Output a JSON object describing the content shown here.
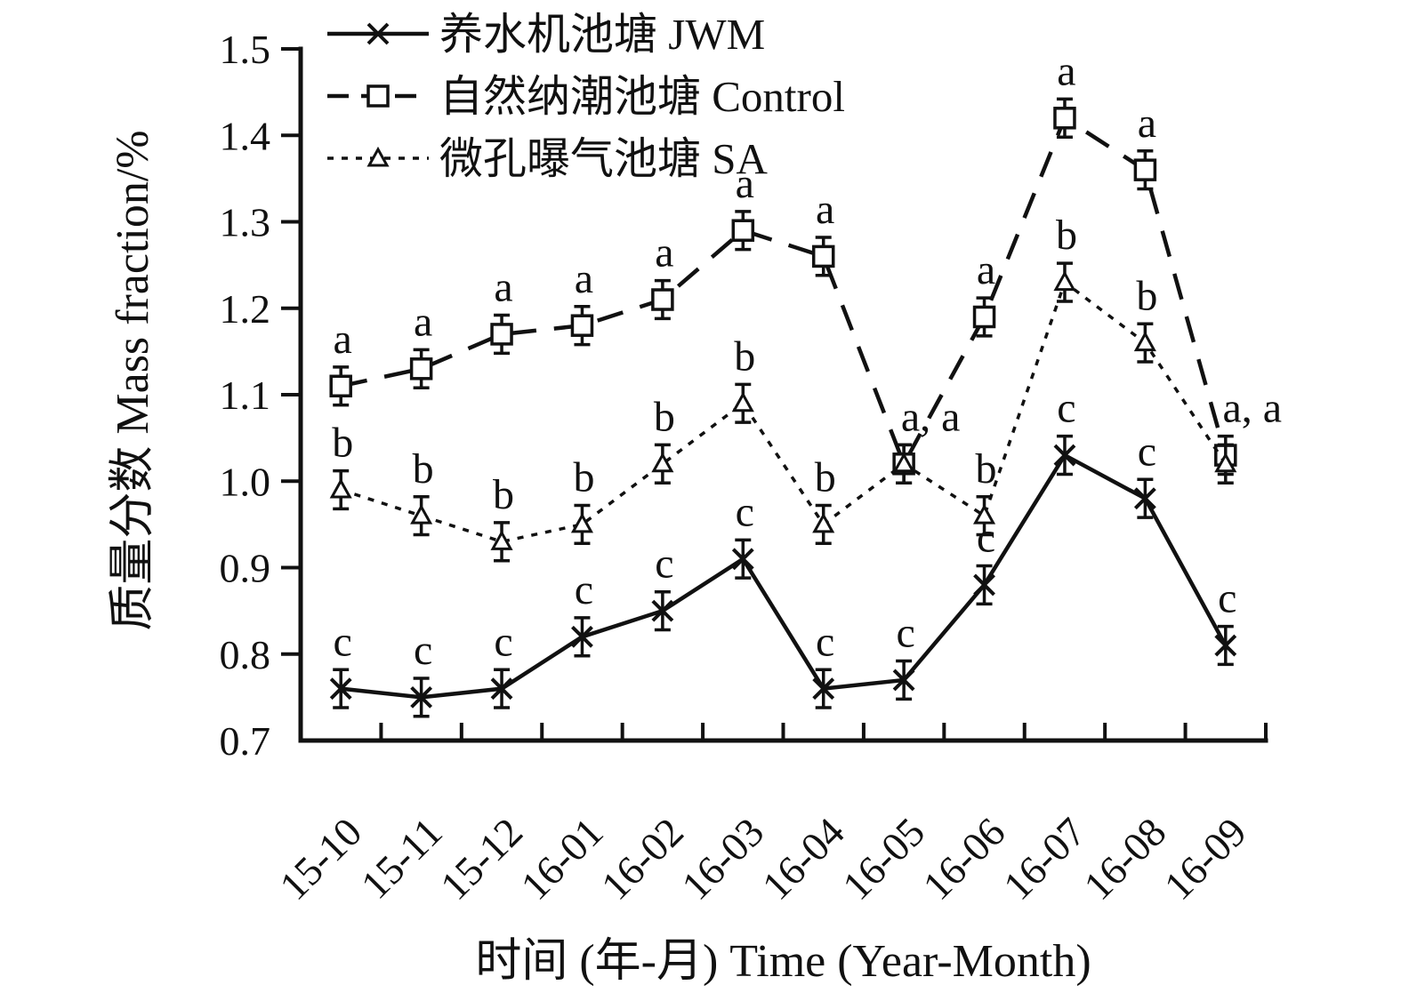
{
  "chart_data": {
    "type": "line",
    "xlabel": "时间 (年-月) Time (Year-Month)",
    "ylabel": "质量分数 Mass fraction/%",
    "x_categories": [
      "15-10",
      "15-11",
      "15-12",
      "16-01",
      "16-02",
      "16-03",
      "16-04",
      "16-05",
      "16-06",
      "16-07",
      "16-08",
      "16-09"
    ],
    "ylim": [
      0.7,
      1.5
    ],
    "ytick_labels": [
      "0.7",
      "0.8",
      "0.9",
      "1.0",
      "1.1",
      "1.2",
      "1.3",
      "1.4",
      "1.5"
    ],
    "yticks": [
      0.7,
      0.8,
      0.9,
      1.0,
      1.1,
      1.2,
      1.3,
      1.4,
      1.5
    ],
    "grid": false,
    "legend_position": "top-left-inside",
    "error_bar": 0.022,
    "line_color": "#111111",
    "series": [
      {
        "name": "自然纳潮池塘 Control",
        "marker": "square",
        "line_style": "dashed",
        "values": [
          1.11,
          1.13,
          1.17,
          1.18,
          1.21,
          1.29,
          1.26,
          1.02,
          1.19,
          1.42,
          1.36,
          1.03
        ],
        "labels": [
          "a",
          "a",
          "a",
          "a",
          "a",
          "a",
          "a",
          "a, a",
          "a",
          "a",
          "a",
          "a, a"
        ]
      },
      {
        "name": "微孔曝气池塘 SA",
        "marker": "triangle",
        "line_style": "dotted",
        "values": [
          0.99,
          0.96,
          0.93,
          0.95,
          1.02,
          1.09,
          0.95,
          1.02,
          0.96,
          1.23,
          1.16,
          1.02
        ],
        "labels": [
          "b",
          "b",
          "b",
          "b",
          "b",
          "b",
          "b",
          "",
          "b",
          "b",
          "b",
          ""
        ]
      },
      {
        "name": "养水机池塘 JWM",
        "marker": "x",
        "line_style": "solid",
        "values": [
          0.76,
          0.75,
          0.76,
          0.82,
          0.85,
          0.91,
          0.76,
          0.77,
          0.88,
          1.03,
          0.98,
          0.81
        ],
        "labels": [
          "c",
          "c",
          "c",
          "c",
          "c",
          "c",
          "c",
          "c",
          "c",
          "c",
          "c",
          "c"
        ]
      }
    ],
    "legend_order": [
      2,
      0,
      1
    ]
  }
}
